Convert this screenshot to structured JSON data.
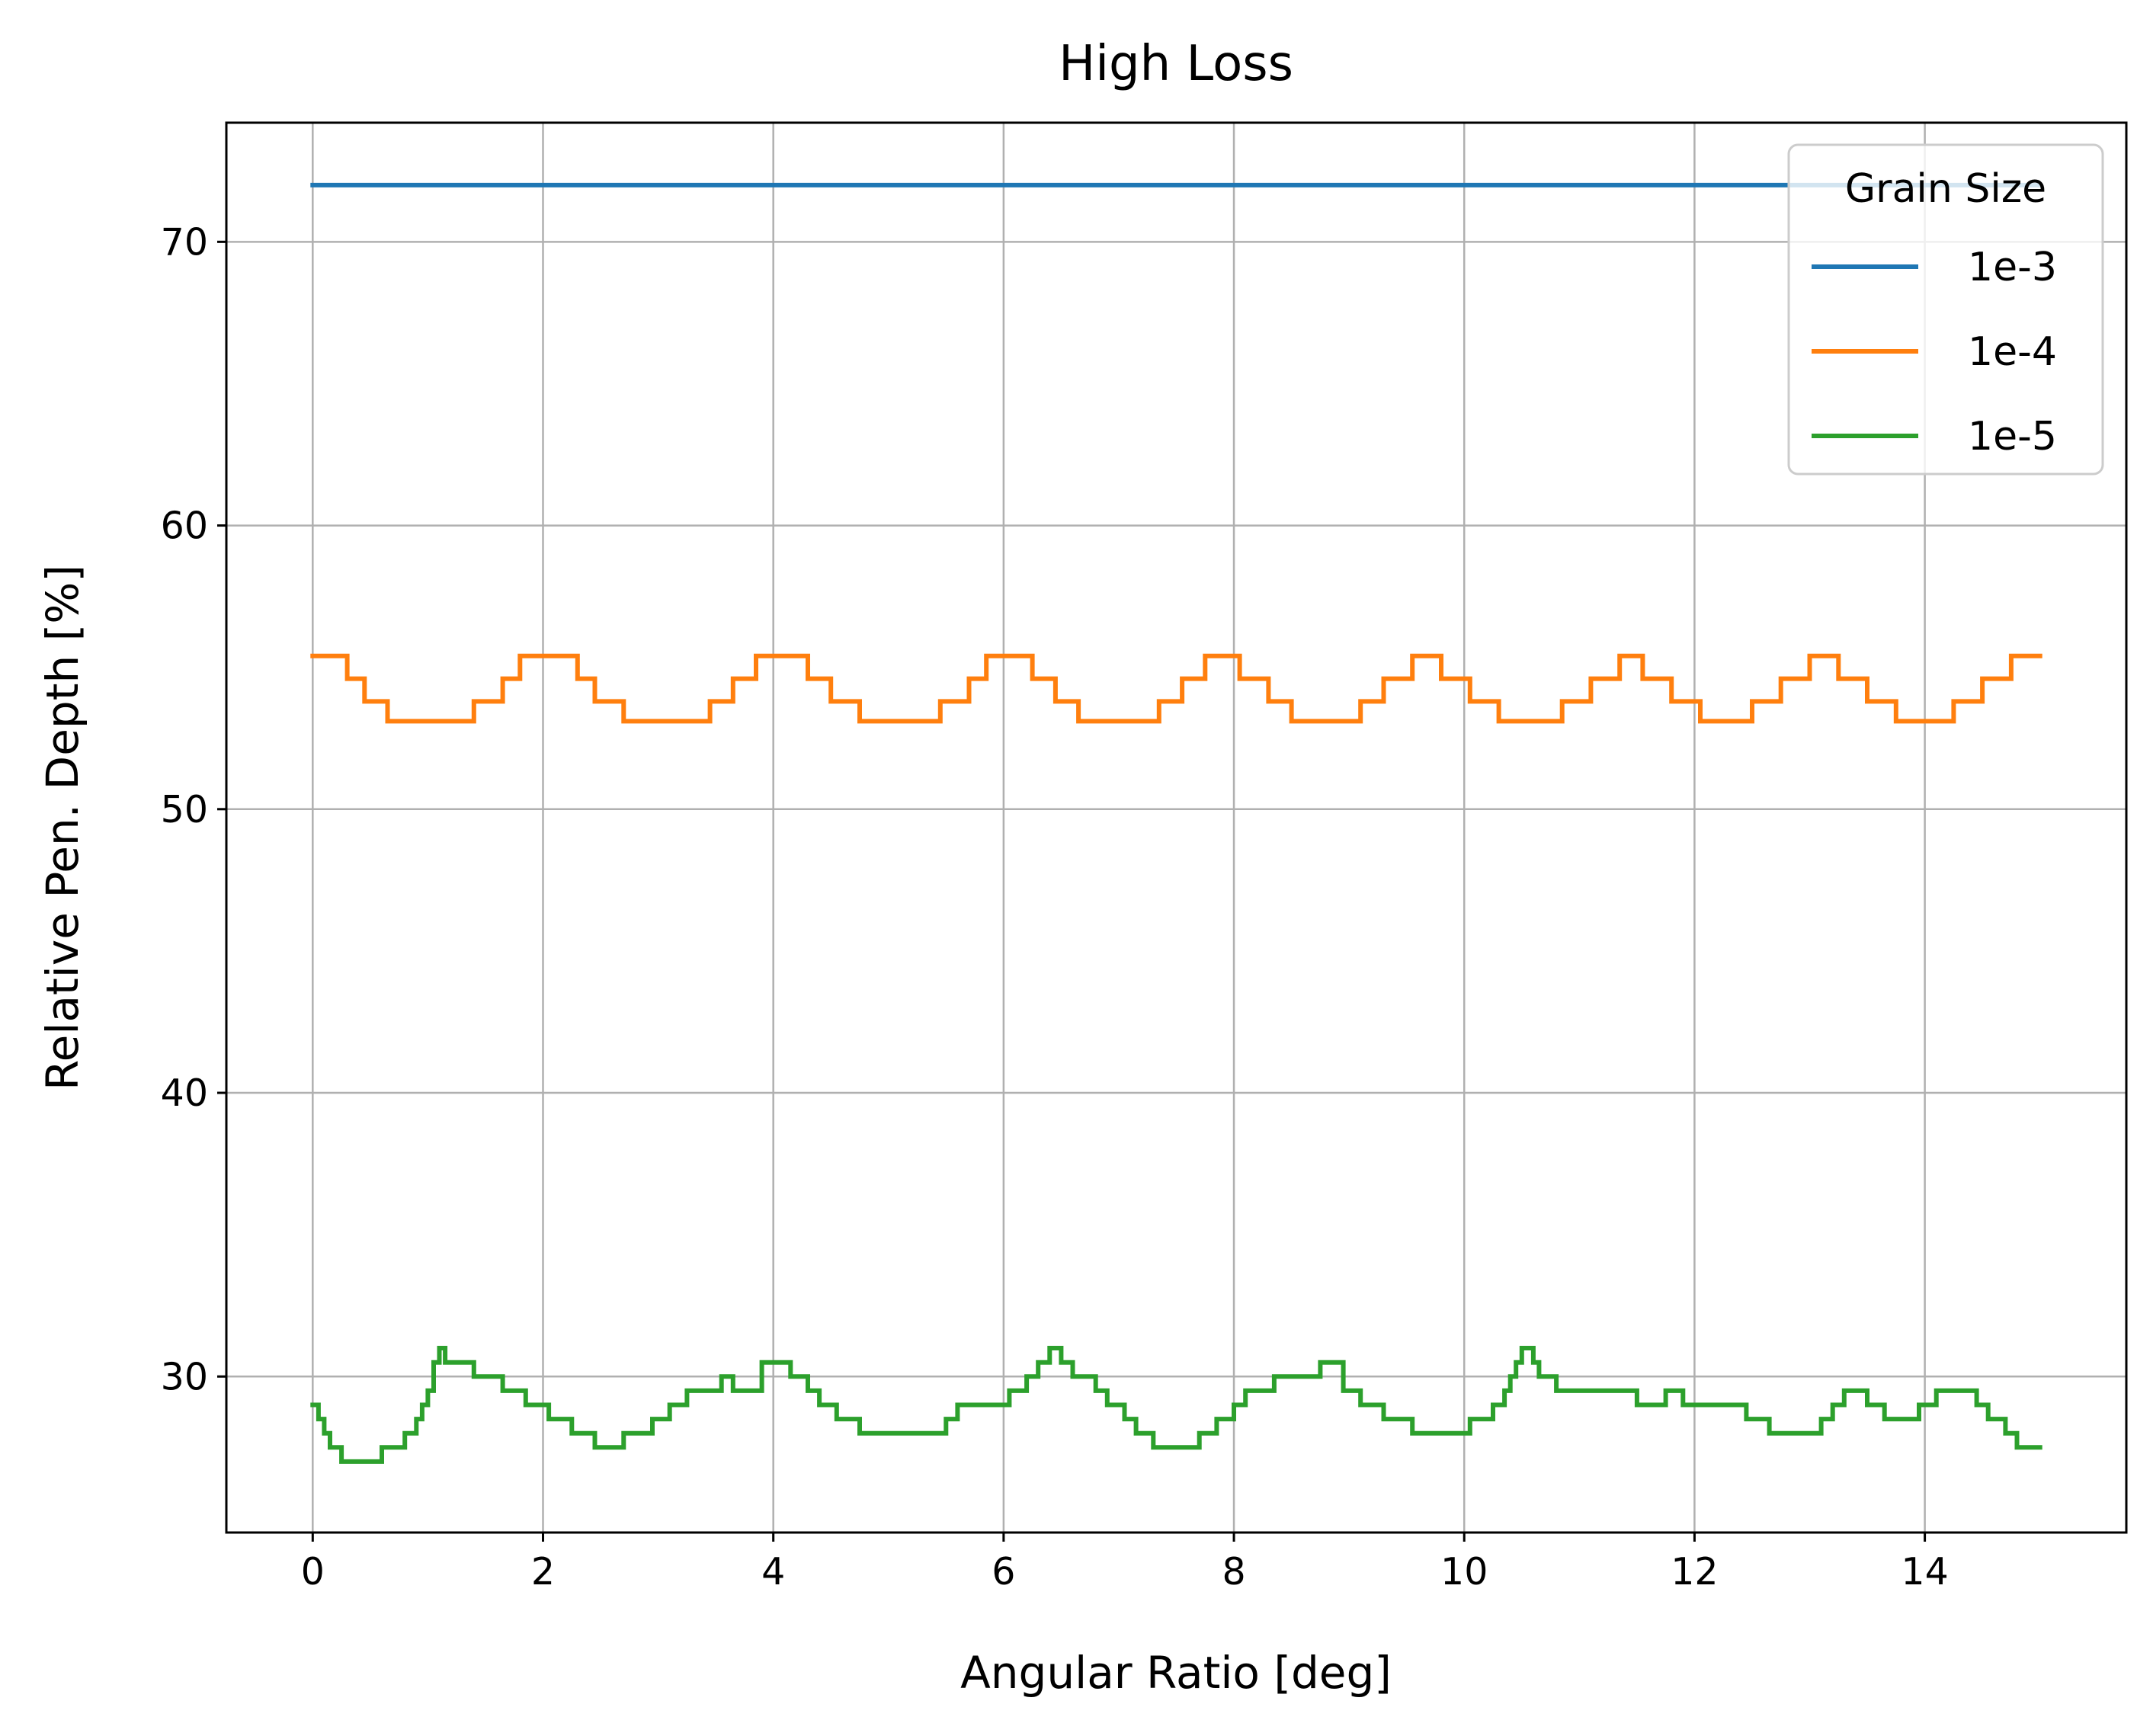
{
  "chart_data": {
    "type": "line",
    "title": "High Loss",
    "xlabel": "Angular Ratio [deg]",
    "ylabel": "Relative Pen. Depth [%]",
    "xlim": [
      -0.75,
      15.75
    ],
    "ylim": [
      24.5,
      74.2
    ],
    "xticks": [
      0,
      2,
      4,
      6,
      8,
      10,
      12,
      14
    ],
    "yticks": [
      30,
      40,
      50,
      60,
      70
    ],
    "grid": true,
    "line_style": "step",
    "legend": {
      "title": "Grain Size",
      "placement": "upper right"
    },
    "series": [
      {
        "name": "1e-3",
        "color": "#1f77b4",
        "points": [
          [
            0,
            72
          ],
          [
            15,
            72
          ]
        ]
      },
      {
        "name": "1e-4",
        "color": "#ff7f0e",
        "points": [
          [
            0,
            55.4
          ],
          [
            0.3,
            55.4
          ],
          [
            0.3,
            54.6
          ],
          [
            0.45,
            54.6
          ],
          [
            0.45,
            53.8
          ],
          [
            0.65,
            53.8
          ],
          [
            0.65,
            53.1
          ],
          [
            1.4,
            53.1
          ],
          [
            1.4,
            53.8
          ],
          [
            1.65,
            53.8
          ],
          [
            1.65,
            54.6
          ],
          [
            1.8,
            54.6
          ],
          [
            1.8,
            55.4
          ],
          [
            2.3,
            55.4
          ],
          [
            2.3,
            54.6
          ],
          [
            2.45,
            54.6
          ],
          [
            2.45,
            53.8
          ],
          [
            2.7,
            53.8
          ],
          [
            2.7,
            53.1
          ],
          [
            3.45,
            53.1
          ],
          [
            3.45,
            53.8
          ],
          [
            3.65,
            53.8
          ],
          [
            3.65,
            54.6
          ],
          [
            3.85,
            54.6
          ],
          [
            3.85,
            55.4
          ],
          [
            4.3,
            55.4
          ],
          [
            4.3,
            54.6
          ],
          [
            4.5,
            54.6
          ],
          [
            4.5,
            53.8
          ],
          [
            4.75,
            53.8
          ],
          [
            4.75,
            53.1
          ],
          [
            5.45,
            53.1
          ],
          [
            5.45,
            53.8
          ],
          [
            5.7,
            53.8
          ],
          [
            5.7,
            54.6
          ],
          [
            5.85,
            54.6
          ],
          [
            5.85,
            55.4
          ],
          [
            6.25,
            55.4
          ],
          [
            6.25,
            54.6
          ],
          [
            6.45,
            54.6
          ],
          [
            6.45,
            53.8
          ],
          [
            6.65,
            53.8
          ],
          [
            6.65,
            53.1
          ],
          [
            7.35,
            53.1
          ],
          [
            7.35,
            53.8
          ],
          [
            7.55,
            53.8
          ],
          [
            7.55,
            54.6
          ],
          [
            7.75,
            54.6
          ],
          [
            7.75,
            55.4
          ],
          [
            8.05,
            55.4
          ],
          [
            8.05,
            54.6
          ],
          [
            8.3,
            54.6
          ],
          [
            8.3,
            53.8
          ],
          [
            8.5,
            53.8
          ],
          [
            8.5,
            53.1
          ],
          [
            9.1,
            53.1
          ],
          [
            9.1,
            53.8
          ],
          [
            9.3,
            53.8
          ],
          [
            9.3,
            54.6
          ],
          [
            9.55,
            54.6
          ],
          [
            9.55,
            55.4
          ],
          [
            9.8,
            55.4
          ],
          [
            9.8,
            54.6
          ],
          [
            10.05,
            54.6
          ],
          [
            10.05,
            53.8
          ],
          [
            10.3,
            53.8
          ],
          [
            10.3,
            53.1
          ],
          [
            10.85,
            53.1
          ],
          [
            10.85,
            53.8
          ],
          [
            11.1,
            53.8
          ],
          [
            11.1,
            54.6
          ],
          [
            11.35,
            54.6
          ],
          [
            11.35,
            55.4
          ],
          [
            11.55,
            55.4
          ],
          [
            11.55,
            54.6
          ],
          [
            11.8,
            54.6
          ],
          [
            11.8,
            53.8
          ],
          [
            12.05,
            53.8
          ],
          [
            12.05,
            53.1
          ],
          [
            12.5,
            53.1
          ],
          [
            12.5,
            53.8
          ],
          [
            12.75,
            53.8
          ],
          [
            12.75,
            54.6
          ],
          [
            13.0,
            54.6
          ],
          [
            13.0,
            55.4
          ],
          [
            13.25,
            55.4
          ],
          [
            13.25,
            54.6
          ],
          [
            13.5,
            54.6
          ],
          [
            13.5,
            53.8
          ],
          [
            13.75,
            53.8
          ],
          [
            13.75,
            53.1
          ],
          [
            14.25,
            53.1
          ],
          [
            14.25,
            53.8
          ],
          [
            14.5,
            53.8
          ],
          [
            14.5,
            54.6
          ],
          [
            14.75,
            54.6
          ],
          [
            14.75,
            55.4
          ],
          [
            15,
            55.4
          ]
        ]
      },
      {
        "name": "1e-5",
        "color": "#2ca02c",
        "points": [
          [
            0,
            29.0
          ],
          [
            0.05,
            29.0
          ],
          [
            0.05,
            28.5
          ],
          [
            0.1,
            28.5
          ],
          [
            0.1,
            28.0
          ],
          [
            0.15,
            28.0
          ],
          [
            0.15,
            27.5
          ],
          [
            0.25,
            27.5
          ],
          [
            0.25,
            27.0
          ],
          [
            0.6,
            27.0
          ],
          [
            0.6,
            27.5
          ],
          [
            0.8,
            27.5
          ],
          [
            0.8,
            28.0
          ],
          [
            0.9,
            28.0
          ],
          [
            0.9,
            28.5
          ],
          [
            0.95,
            28.5
          ],
          [
            0.95,
            29.0
          ],
          [
            1.0,
            29.0
          ],
          [
            1.0,
            29.5
          ],
          [
            1.05,
            29.5
          ],
          [
            1.05,
            30.5
          ],
          [
            1.1,
            30.5
          ],
          [
            1.1,
            31.0
          ],
          [
            1.15,
            31.0
          ],
          [
            1.15,
            30.5
          ],
          [
            1.4,
            30.5
          ],
          [
            1.4,
            30.0
          ],
          [
            1.65,
            30.0
          ],
          [
            1.65,
            29.5
          ],
          [
            1.85,
            29.5
          ],
          [
            1.85,
            29.0
          ],
          [
            2.05,
            29.0
          ],
          [
            2.05,
            28.5
          ],
          [
            2.25,
            28.5
          ],
          [
            2.25,
            28.0
          ],
          [
            2.45,
            28.0
          ],
          [
            2.45,
            27.5
          ],
          [
            2.7,
            27.5
          ],
          [
            2.7,
            28.0
          ],
          [
            2.95,
            28.0
          ],
          [
            2.95,
            28.5
          ],
          [
            3.1,
            28.5
          ],
          [
            3.1,
            29.0
          ],
          [
            3.25,
            29.0
          ],
          [
            3.25,
            29.5
          ],
          [
            3.55,
            29.5
          ],
          [
            3.55,
            30.0
          ],
          [
            3.65,
            30.0
          ],
          [
            3.65,
            29.5
          ],
          [
            3.9,
            29.5
          ],
          [
            3.9,
            30.5
          ],
          [
            4.15,
            30.5
          ],
          [
            4.15,
            30.0
          ],
          [
            4.3,
            30.0
          ],
          [
            4.3,
            29.5
          ],
          [
            4.4,
            29.5
          ],
          [
            4.4,
            29.0
          ],
          [
            4.55,
            29.0
          ],
          [
            4.55,
            28.5
          ],
          [
            4.75,
            28.5
          ],
          [
            4.75,
            28.0
          ],
          [
            5.5,
            28.0
          ],
          [
            5.5,
            28.5
          ],
          [
            5.6,
            28.5
          ],
          [
            5.6,
            29.0
          ],
          [
            6.05,
            29.0
          ],
          [
            6.05,
            29.5
          ],
          [
            6.2,
            29.5
          ],
          [
            6.2,
            30.0
          ],
          [
            6.3,
            30.0
          ],
          [
            6.3,
            30.5
          ],
          [
            6.4,
            30.5
          ],
          [
            6.4,
            31.0
          ],
          [
            6.5,
            31.0
          ],
          [
            6.5,
            30.5
          ],
          [
            6.6,
            30.5
          ],
          [
            6.6,
            30.0
          ],
          [
            6.8,
            30.0
          ],
          [
            6.8,
            29.5
          ],
          [
            6.9,
            29.5
          ],
          [
            6.9,
            29.0
          ],
          [
            7.05,
            29.0
          ],
          [
            7.05,
            28.5
          ],
          [
            7.15,
            28.5
          ],
          [
            7.15,
            28.0
          ],
          [
            7.3,
            28.0
          ],
          [
            7.3,
            27.5
          ],
          [
            7.7,
            27.5
          ],
          [
            7.7,
            28.0
          ],
          [
            7.85,
            28.0
          ],
          [
            7.85,
            28.5
          ],
          [
            8.0,
            28.5
          ],
          [
            8.0,
            29.0
          ],
          [
            8.1,
            29.0
          ],
          [
            8.1,
            29.5
          ],
          [
            8.35,
            29.5
          ],
          [
            8.35,
            30.0
          ],
          [
            8.75,
            30.0
          ],
          [
            8.75,
            30.5
          ],
          [
            8.95,
            30.5
          ],
          [
            8.95,
            29.5
          ],
          [
            9.1,
            29.5
          ],
          [
            9.1,
            29.0
          ],
          [
            9.3,
            29.0
          ],
          [
            9.3,
            28.5
          ],
          [
            9.55,
            28.5
          ],
          [
            9.55,
            28.0
          ],
          [
            10.05,
            28.0
          ],
          [
            10.05,
            28.5
          ],
          [
            10.25,
            28.5
          ],
          [
            10.25,
            29.0
          ],
          [
            10.35,
            29.0
          ],
          [
            10.35,
            29.5
          ],
          [
            10.4,
            29.5
          ],
          [
            10.4,
            30.0
          ],
          [
            10.45,
            30.0
          ],
          [
            10.45,
            30.5
          ],
          [
            10.5,
            30.5
          ],
          [
            10.5,
            31.0
          ],
          [
            10.6,
            31.0
          ],
          [
            10.6,
            30.5
          ],
          [
            10.65,
            30.5
          ],
          [
            10.65,
            30.0
          ],
          [
            10.8,
            30.0
          ],
          [
            10.8,
            29.5
          ],
          [
            11.5,
            29.5
          ],
          [
            11.5,
            29.0
          ],
          [
            11.75,
            29.0
          ],
          [
            11.75,
            29.5
          ],
          [
            11.9,
            29.5
          ],
          [
            11.9,
            29.0
          ],
          [
            12.45,
            29.0
          ],
          [
            12.45,
            28.5
          ],
          [
            12.65,
            28.5
          ],
          [
            12.65,
            28.0
          ],
          [
            13.1,
            28.0
          ],
          [
            13.1,
            28.5
          ],
          [
            13.2,
            28.5
          ],
          [
            13.2,
            29.0
          ],
          [
            13.3,
            29.0
          ],
          [
            13.3,
            29.5
          ],
          [
            13.5,
            29.5
          ],
          [
            13.5,
            29.0
          ],
          [
            13.65,
            29.0
          ],
          [
            13.65,
            28.5
          ],
          [
            13.95,
            28.5
          ],
          [
            13.95,
            29.0
          ],
          [
            14.1,
            29.0
          ],
          [
            14.1,
            29.5
          ],
          [
            14.45,
            29.5
          ],
          [
            14.45,
            29.0
          ],
          [
            14.55,
            29.0
          ],
          [
            14.55,
            28.5
          ],
          [
            14.7,
            28.5
          ],
          [
            14.7,
            28.0
          ],
          [
            14.8,
            28.0
          ],
          [
            14.8,
            27.5
          ],
          [
            15.0,
            27.5
          ]
        ]
      }
    ]
  }
}
